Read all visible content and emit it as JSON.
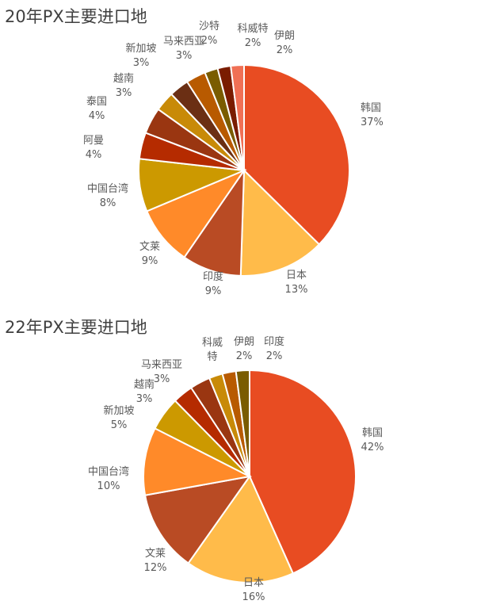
{
  "chart_data": [
    {
      "type": "pie",
      "title": "20年PX主要进口地",
      "categories": [
        "韩国",
        "日本",
        "印度",
        "文莱",
        "中国台湾",
        "阿曼",
        "泰国",
        "越南",
        "新加坡",
        "马来西亚",
        "沙特",
        "科威特",
        "伊朗"
      ],
      "values": [
        37,
        13,
        9,
        9,
        8,
        4,
        4,
        3,
        3,
        3,
        2,
        2,
        2
      ],
      "value_labels": [
        "37%",
        "13%",
        "9%",
        "9%",
        "8%",
        "4%",
        "4%",
        "3%",
        "3%",
        "3%",
        "2%",
        "2%",
        "2%"
      ],
      "colors": [
        "#E84C22",
        "#FFBB4A",
        "#B94B24",
        "#FF8A29",
        "#CC9900",
        "#B52B00",
        "#9A3611",
        "#C88A08",
        "#6B2F14",
        "#B85A00",
        "#7A5C00",
        "#7A1C00",
        "#F07055"
      ]
    },
    {
      "type": "pie",
      "title": "22年PX主要进口地",
      "categories": [
        "韩国",
        "日本",
        "文莱",
        "中国台湾",
        "新加坡",
        "越南",
        "马来西亚",
        "科威\n特",
        "伊朗",
        "印度"
      ],
      "values": [
        42,
        16,
        12,
        10,
        5,
        3,
        3,
        2,
        2,
        2
      ],
      "value_labels": [
        "42%",
        "16%",
        "12%",
        "10%",
        "5%",
        "3%",
        "3%",
        "",
        "2%",
        "2%"
      ],
      "colors": [
        "#E84C22",
        "#FFBB4A",
        "#B94B24",
        "#FF8A29",
        "#CC9900",
        "#B52B00",
        "#9A3611",
        "#C88A08",
        "#B85A00",
        "#7A5C00",
        "#7A1C00",
        "#F07055"
      ]
    }
  ]
}
